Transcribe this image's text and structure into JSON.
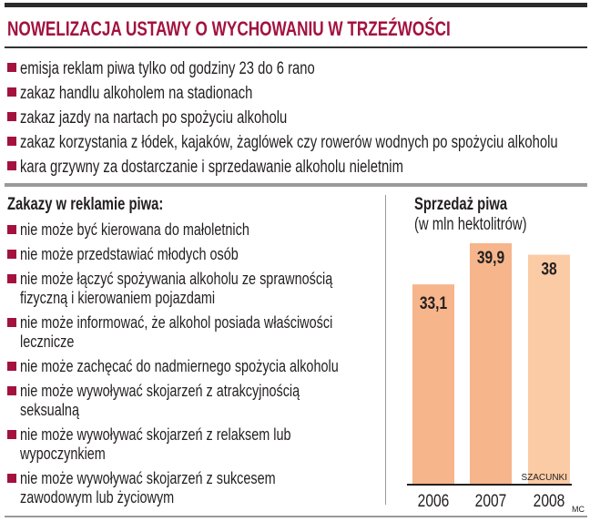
{
  "title": "NOWELIZACJA USTAWY O WYCHOWANIU W TRZEŹWOŚCI",
  "changes": [
    "emisja reklam piwa  tylko od godziny 23 do 6 rano",
    "zakaz handlu alkoholem na stadionach",
    "zakaz jazdy na nartach po spożyciu alkoholu",
    "zakaz korzystania z łódek, kajaków, żaglówek czy rowerów wodnych po spożyciu alkoholu",
    "kara grzywny za dostarczanie i sprzedawanie alkoholu nieletnim"
  ],
  "ad_bans": {
    "heading": "Zakazy w reklamie piwa:",
    "items": [
      [
        "nie może być kierowana do małoletnich"
      ],
      [
        "nie może przedstawiać młodych osób"
      ],
      [
        "nie może łączyć spożywania alkoholu ze sprawnością",
        "fizyczną i kierowaniem pojazdami"
      ],
      [
        "nie może informować, że alkohol posiada właściwości",
        "lecznicze"
      ],
      [
        "nie może zachęcać do nadmiernego spożycia alkoholu"
      ],
      [
        "nie może wywoływać skojarzeń z atrakcyjnością",
        "seksualną"
      ],
      [
        "nie może wywoływać skojarzeń z relaksem lub",
        "wypoczynkiem"
      ],
      [
        "nie może wywoływać skojarzeń z sukcesem",
        "zawodowym lub życiowym"
      ]
    ]
  },
  "colors": {
    "accent": "#a3123f",
    "bar": "#f6b58b",
    "bar_estimate": "#fbcba5"
  },
  "chart_data": {
    "type": "bar",
    "title": "Sprzedaż piwa",
    "subtitle": "(w mln hektolitrów)",
    "categories": [
      "2006",
      "2007",
      "2008"
    ],
    "values": [
      33.1,
      39.9,
      38
    ],
    "value_labels": [
      "33,1",
      "39,9",
      "38"
    ],
    "estimate_note": "SZACUNKI",
    "xlabel": "",
    "ylabel": "",
    "ylim": [
      0,
      40
    ],
    "credit": "MC"
  }
}
